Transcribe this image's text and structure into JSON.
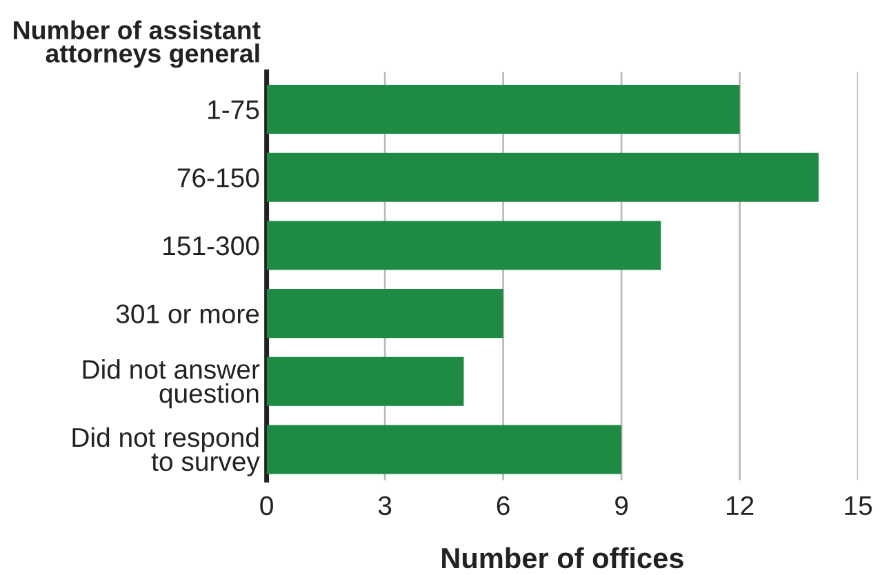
{
  "chart_data": {
    "type": "bar",
    "orientation": "horizontal",
    "categories": [
      "1-75",
      "76-150",
      "151-300",
      "301 or more",
      "Did not answer\nquestion",
      "Did not respond\nto survey"
    ],
    "values": [
      12,
      14,
      10,
      6,
      5,
      9
    ],
    "color": "#1e8a44",
    "xlabel": "Number of offices",
    "ylabel": "Number of assistant\nattorneys general",
    "xlim": [
      0,
      15
    ],
    "xticks": [
      0,
      3,
      6,
      9,
      12,
      15
    ],
    "grid": "x"
  }
}
